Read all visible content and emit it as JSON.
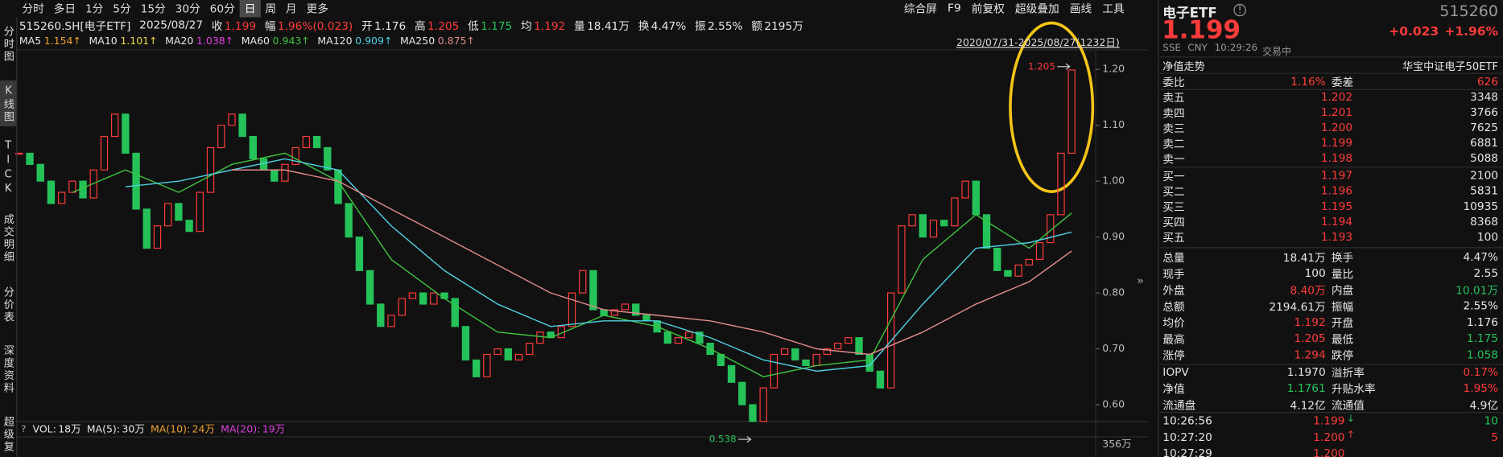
{
  "toolbar": {
    "tabs": [
      "分时",
      "多日",
      "1分",
      "5分",
      "15分",
      "30分",
      "60分",
      "日",
      "周",
      "月",
      "更多"
    ],
    "tools": [
      "综合屏",
      "F9",
      "前复权",
      "超级叠加",
      "画线",
      "工具"
    ]
  },
  "side_tabs": [
    "分时图",
    "K线图",
    "TICK",
    "成交明细",
    "分价表",
    "深度资料",
    "超级复"
  ],
  "info": {
    "symbol": "515260.SH[电子ETF]",
    "date": "2025/08/27",
    "items": [
      {
        "label": "收",
        "value": "1.199"
      },
      {
        "label": "幅",
        "value": "1.96%(0.023)"
      },
      {
        "label": "开",
        "value": "1.176"
      },
      {
        "label": "高",
        "value": "1.205"
      },
      {
        "label": "低",
        "value": "1.175"
      },
      {
        "label": "均",
        "value": "1.192"
      },
      {
        "label": "量",
        "value": "18.41万"
      },
      {
        "label": "换",
        "value": "4.47%"
      },
      {
        "label": "振",
        "value": "2.55%"
      },
      {
        "label": "额",
        "value": "2195万"
      }
    ]
  },
  "chart_data": {
    "type": "kline",
    "range": "2020/07/31-2025/08/27(1232日)",
    "up_color": "#ff3b3b",
    "down_color": "#25c25a",
    "values": [
      1.05,
      1.03,
      1.0,
      0.96,
      0.98,
      1.0,
      0.97,
      1.02,
      1.08,
      1.12,
      1.05,
      0.95,
      0.88,
      0.92,
      0.96,
      0.93,
      0.91,
      0.98,
      1.06,
      1.1,
      1.12,
      1.08,
      1.04,
      1.02,
      1.0,
      1.03,
      1.06,
      1.08,
      1.06,
      1.02,
      0.96,
      0.9,
      0.84,
      0.78,
      0.74,
      0.76,
      0.79,
      0.8,
      0.78,
      0.8,
      0.79,
      0.74,
      0.68,
      0.65,
      0.69,
      0.7,
      0.68,
      0.69,
      0.71,
      0.73,
      0.72,
      0.74,
      0.8,
      0.84,
      0.77,
      0.76,
      0.77,
      0.78,
      0.76,
      0.75,
      0.73,
      0.71,
      0.72,
      0.73,
      0.71,
      0.69,
      0.67,
      0.64,
      0.6,
      0.57,
      0.63,
      0.69,
      0.7,
      0.68,
      0.67,
      0.69,
      0.7,
      0.71,
      0.72,
      0.69,
      0.66,
      0.63,
      0.8,
      0.92,
      0.94,
      0.9,
      0.93,
      0.92,
      0.97,
      1.0,
      0.94,
      0.88,
      0.84,
      0.83,
      0.85,
      0.86,
      0.89,
      0.94,
      1.05,
      1.199
    ],
    "xlim": [
      0,
      99
    ],
    "ylim": [
      0.575,
      1.235
    ],
    "yticks": [
      {
        "value": 0.6,
        "label": "0.60"
      },
      {
        "value": 0.7,
        "label": "0.70"
      },
      {
        "value": 0.8,
        "label": "0.80"
      },
      {
        "value": 0.9,
        "label": "0.90"
      },
      {
        "value": 1.0,
        "label": "1.00"
      },
      {
        "value": 1.1,
        "label": "1.10"
      },
      {
        "value": 1.2,
        "label": "1.20"
      }
    ],
    "grid": false,
    "annotations": [
      {
        "value": 1.205,
        "color": "#ff3b3b"
      },
      {
        "value": 0.538,
        "color": "#25c25a"
      }
    ],
    "ma": [
      {
        "name": "MA5",
        "value": "1.154↑",
        "color": "#f0a030"
      },
      {
        "name": "MA10",
        "value": "1.101↑",
        "color": "#e8d84a"
      },
      {
        "name": "MA20",
        "value": "1.038↑",
        "color": "#e040e0"
      },
      {
        "name": "MA60",
        "value": "0.943↑",
        "color": "#3fc23f",
        "x": [
          0,
          5,
          10,
          15,
          20,
          25,
          30,
          35,
          40,
          45,
          50,
          55,
          60,
          65,
          70,
          75,
          80,
          85,
          90,
          95,
          99
        ],
        "values": [
          null,
          0.98,
          1.02,
          0.98,
          1.03,
          1.05,
          1.0,
          0.86,
          0.79,
          0.73,
          0.72,
          0.76,
          0.74,
          0.7,
          0.65,
          0.67,
          0.68,
          0.86,
          0.94,
          0.88,
          0.943
        ]
      },
      {
        "name": "MA120",
        "value": "0.909↑",
        "color": "#4dd0e1",
        "x": [
          0,
          5,
          10,
          15,
          20,
          25,
          30,
          35,
          40,
          45,
          50,
          55,
          60,
          65,
          70,
          75,
          80,
          85,
          90,
          95,
          99
        ],
        "values": [
          null,
          null,
          0.99,
          1.0,
          1.02,
          1.04,
          1.02,
          0.92,
          0.84,
          0.78,
          0.74,
          0.75,
          0.75,
          0.72,
          0.68,
          0.66,
          0.67,
          0.78,
          0.88,
          0.89,
          0.909
        ]
      },
      {
        "name": "MA250",
        "value": "0.875↑",
        "color": "#e08a8a",
        "x": [
          0,
          5,
          10,
          15,
          20,
          25,
          30,
          35,
          40,
          45,
          50,
          55,
          60,
          65,
          70,
          75,
          80,
          85,
          90,
          95,
          99
        ],
        "values": [
          null,
          null,
          null,
          null,
          1.02,
          1.02,
          1.0,
          0.95,
          0.9,
          0.85,
          0.8,
          0.77,
          0.76,
          0.75,
          0.73,
          0.7,
          0.69,
          0.73,
          0.78,
          0.82,
          0.875
        ]
      }
    ]
  },
  "volume": {
    "items": [
      {
        "label": "VOL:",
        "value": "18万"
      },
      {
        "label": "MA(5):",
        "value": "30万"
      },
      {
        "label": "MA(10):",
        "value": "24万"
      },
      {
        "label": "MA(20):",
        "value": "19万"
      }
    ],
    "axis_label": "356万"
  },
  "quote": {
    "name": "电子ETF",
    "code": "515260",
    "price": "1.199",
    "change": "+0.023",
    "change_pct": "+1.96%",
    "exchange": "SSE",
    "currency": "CNY",
    "time": "10:29:26",
    "status": "交易中",
    "tab": "净值走势",
    "fund_name": "华宝中证电子50ETF",
    "order_ratio": [
      "委比",
      "1.16%",
      "委差",
      "626"
    ],
    "asks": [
      [
        "卖五",
        "1.202",
        "3348"
      ],
      [
        "卖四",
        "1.201",
        "3766"
      ],
      [
        "卖三",
        "1.200",
        "7625"
      ],
      [
        "卖二",
        "1.199",
        "6881"
      ],
      [
        "卖一",
        "1.198",
        "5088"
      ]
    ],
    "bids": [
      [
        "买一",
        "1.197",
        "2100"
      ],
      [
        "买二",
        "1.196",
        "5831"
      ],
      [
        "买三",
        "1.195",
        "10935"
      ],
      [
        "买四",
        "1.194",
        "8368"
      ],
      [
        "买五",
        "1.193",
        "100"
      ]
    ],
    "stats": [
      [
        "总量",
        "18.41万",
        "换手",
        "4.47%"
      ],
      [
        "现手",
        "100",
        "量比",
        "2.55"
      ],
      [
        "外盘",
        "8.40万",
        "内盘",
        "10.01万"
      ],
      [
        "总额",
        "2194.61万",
        "振幅",
        "2.55%"
      ],
      [
        "均价",
        "1.192",
        "开盘",
        "1.176"
      ],
      [
        "最高",
        "1.205",
        "最低",
        "1.175"
      ],
      [
        "涨停",
        "1.294",
        "跌停",
        "1.058"
      ],
      [
        "IOPV",
        "1.1970",
        "溢折率",
        "0.17%"
      ],
      [
        "净值",
        "1.1761",
        "升贴水率",
        "1.95%"
      ],
      [
        "流通盘",
        "4.12亿",
        "流通值",
        "4.9亿"
      ]
    ],
    "trades": [
      [
        "10:26:56",
        "1.199",
        "10"
      ],
      [
        "10:27:20",
        "1.200",
        "5"
      ],
      [
        "10:27:29",
        "1.200"
      ]
    ]
  }
}
